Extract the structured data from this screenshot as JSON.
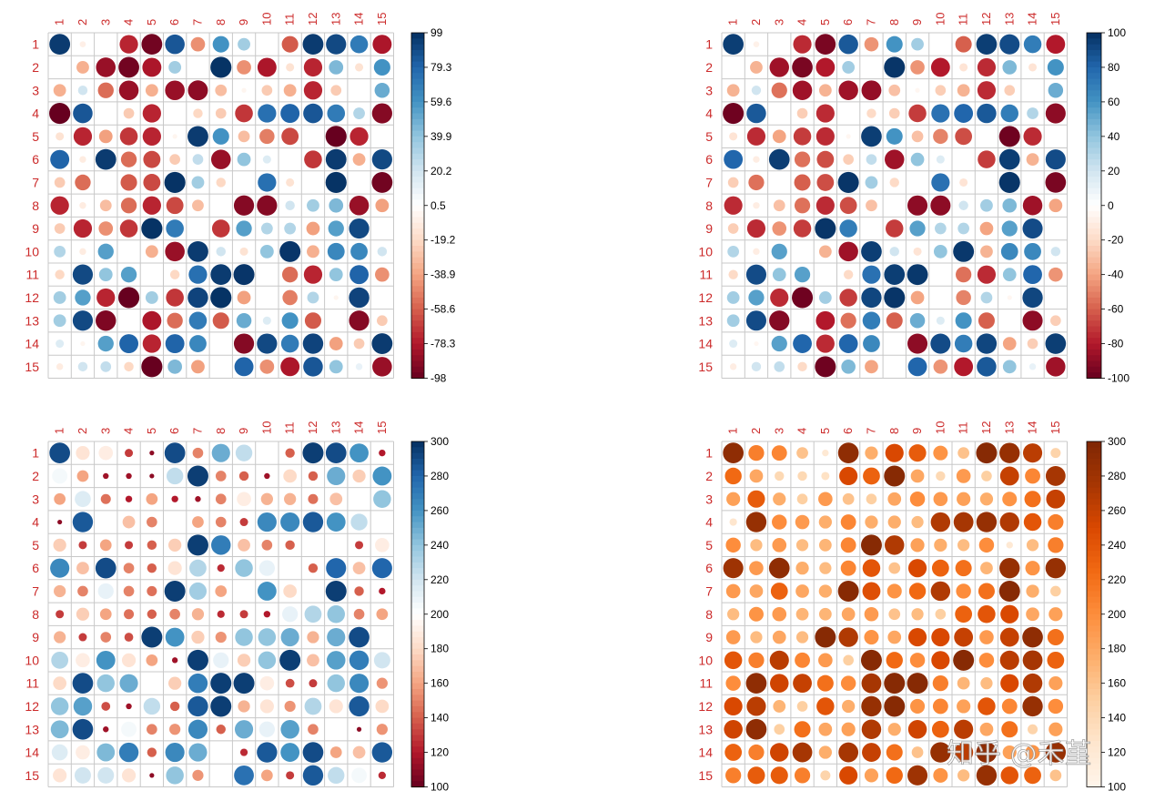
{
  "colors": {
    "tick_label": "#cc2a2a",
    "grid": "#c8c8c8",
    "colorbar_border": "#000000",
    "rdbu": [
      "#67001F",
      "#B2182B",
      "#D6604D",
      "#F4A582",
      "#FDDBC7",
      "#FFFFFF",
      "#D1E5F0",
      "#92C5DE",
      "#4393C3",
      "#2166AC",
      "#053061"
    ],
    "oranges": [
      "#FFF5EB",
      "#FEE6CE",
      "#FDD0A2",
      "#FDAE6B",
      "#FD8D3C",
      "#F16913",
      "#D94801",
      "#A63603",
      "#7F2704"
    ]
  },
  "watermark": "知乎 @禾堇",
  "chart_data": [
    {
      "type": "heatmap",
      "panel": "top-left",
      "palette": "rdbu",
      "title": "",
      "xlabel": "",
      "ylabel": "",
      "labels": [
        "1",
        "2",
        "3",
        "4",
        "5",
        "6",
        "7",
        "8",
        "9",
        "10",
        "11",
        "12",
        "13",
        "14",
        "15"
      ],
      "zlim": [
        -98,
        99
      ],
      "colorbar_ticks": [
        "99",
        "79.3",
        "59.6",
        "39.9",
        "20.2",
        "0.5",
        "-19.2",
        "-38.9",
        "-58.6",
        "-78.3",
        "-98"
      ],
      "legend_position": "right",
      "values": [
        [
          95,
          -8,
          0,
          -75,
          -95,
          85,
          -45,
          60,
          35,
          0,
          -60,
          95,
          90,
          70,
          -80
        ],
        [
          0,
          -35,
          -85,
          -95,
          -80,
          35,
          0,
          98,
          -45,
          -80,
          -15,
          -75,
          45,
          -15,
          60
        ],
        [
          -35,
          20,
          -55,
          -85,
          -35,
          -85,
          -88,
          -30,
          -5,
          -25,
          -35,
          -75,
          -25,
          0,
          50
        ],
        [
          -98,
          85,
          0,
          -25,
          -75,
          0,
          -20,
          -25,
          -70,
          75,
          80,
          85,
          70,
          30,
          -90
        ],
        [
          -15,
          -75,
          -40,
          -70,
          -75,
          -5,
          95,
          60,
          -30,
          -50,
          -65,
          0,
          -98,
          -75,
          0
        ],
        [
          80,
          -10,
          95,
          -55,
          -65,
          -25,
          25,
          -85,
          40,
          15,
          0,
          -70,
          95,
          -35,
          90
        ],
        [
          -25,
          -55,
          0,
          -60,
          -65,
          98,
          35,
          -20,
          0,
          75,
          -15,
          0,
          98,
          0,
          -95
        ],
        [
          -75,
          -10,
          -30,
          -55,
          -75,
          -65,
          -30,
          0,
          -90,
          -90,
          20,
          35,
          45,
          -85,
          -40
        ],
        [
          -25,
          -75,
          -45,
          -70,
          98,
          70,
          0,
          -70,
          55,
          30,
          30,
          -40,
          55,
          90,
          0
        ],
        [
          30,
          -10,
          55,
          0,
          -35,
          -85,
          95,
          20,
          -15,
          40,
          97,
          -35,
          65,
          65,
          20
        ],
        [
          -20,
          90,
          40,
          55,
          0,
          -20,
          75,
          95,
          97,
          0,
          -55,
          -75,
          40,
          80,
          -45
        ],
        [
          35,
          55,
          -75,
          -98,
          35,
          -70,
          92,
          98,
          -40,
          0,
          -50,
          30,
          -5,
          92,
          0
        ],
        [
          35,
          90,
          -92,
          0,
          -80,
          -55,
          70,
          -60,
          50,
          15,
          60,
          -60,
          0,
          -90,
          -25
        ],
        [
          15,
          -5,
          55,
          80,
          -75,
          80,
          65,
          0,
          -90,
          90,
          70,
          92,
          -40,
          -25,
          95
        ],
        [
          -10,
          20,
          25,
          -20,
          -98,
          45,
          -40,
          0,
          80,
          -45,
          -80,
          85,
          40,
          10,
          -85
        ]
      ]
    },
    {
      "type": "heatmap",
      "panel": "top-right",
      "palette": "rdbu",
      "title": "",
      "xlabel": "",
      "ylabel": "",
      "labels": [
        "1",
        "2",
        "3",
        "4",
        "5",
        "6",
        "7",
        "8",
        "9",
        "10",
        "11",
        "12",
        "13",
        "14",
        "15"
      ],
      "zlim": [
        -100,
        100
      ],
      "colorbar_ticks": [
        "100",
        "80",
        "60",
        "40",
        "20",
        "0",
        "-20",
        "-40",
        "-60",
        "-80",
        "-100"
      ],
      "legend_position": "right",
      "values": [
        [
          95,
          -8,
          0,
          -75,
          -95,
          85,
          -45,
          60,
          35,
          0,
          -60,
          95,
          90,
          70,
          -80
        ],
        [
          0,
          -35,
          -85,
          -95,
          -80,
          35,
          0,
          98,
          -45,
          -80,
          -15,
          -75,
          45,
          -15,
          60
        ],
        [
          -35,
          20,
          -55,
          -85,
          -35,
          -85,
          -88,
          -30,
          -5,
          -25,
          -35,
          -75,
          -25,
          0,
          50
        ],
        [
          -98,
          85,
          0,
          -25,
          -75,
          0,
          -20,
          -25,
          -70,
          75,
          80,
          85,
          70,
          30,
          -90
        ],
        [
          -15,
          -75,
          -40,
          -70,
          -75,
          -5,
          95,
          60,
          -30,
          -50,
          -65,
          0,
          -98,
          -75,
          0
        ],
        [
          80,
          -10,
          95,
          -55,
          -65,
          -25,
          25,
          -85,
          40,
          15,
          0,
          -70,
          95,
          -35,
          90
        ],
        [
          -25,
          -55,
          0,
          -60,
          -65,
          98,
          35,
          -20,
          0,
          75,
          -15,
          0,
          98,
          0,
          -95
        ],
        [
          -75,
          -10,
          -30,
          -55,
          -75,
          -65,
          -30,
          0,
          -90,
          -90,
          20,
          35,
          45,
          -85,
          -40
        ],
        [
          -25,
          -75,
          -45,
          -70,
          98,
          70,
          0,
          -70,
          55,
          30,
          30,
          -40,
          55,
          90,
          0
        ],
        [
          30,
          -10,
          55,
          0,
          -35,
          -85,
          95,
          20,
          -15,
          40,
          97,
          -35,
          65,
          65,
          20
        ],
        [
          -20,
          90,
          40,
          55,
          0,
          -20,
          75,
          95,
          97,
          0,
          -55,
          -75,
          40,
          80,
          -45
        ],
        [
          35,
          55,
          -75,
          -98,
          35,
          -70,
          92,
          98,
          -40,
          0,
          -50,
          30,
          -5,
          92,
          0
        ],
        [
          35,
          90,
          -92,
          0,
          -80,
          -55,
          70,
          -60,
          50,
          15,
          60,
          -60,
          0,
          -90,
          -25
        ],
        [
          15,
          -5,
          55,
          80,
          -75,
          80,
          65,
          0,
          -90,
          90,
          70,
          92,
          -40,
          -25,
          95
        ],
        [
          -10,
          20,
          25,
          -20,
          -98,
          45,
          -40,
          0,
          80,
          -45,
          -80,
          85,
          40,
          10,
          -85
        ]
      ]
    },
    {
      "type": "heatmap",
      "panel": "bottom-left",
      "palette": "rdbu",
      "title": "",
      "xlabel": "",
      "ylabel": "",
      "labels": [
        "1",
        "2",
        "3",
        "4",
        "5",
        "6",
        "7",
        "8",
        "9",
        "10",
        "11",
        "12",
        "13",
        "14",
        "15"
      ],
      "zlim": [
        100,
        300
      ],
      "colorbar_ticks": [
        "300",
        "280",
        "260",
        "240",
        "220",
        "200",
        "180",
        "160",
        "140",
        "120",
        "100"
      ],
      "legend_position": "right",
      "values": [
        [
          290,
          185,
          190,
          130,
          110,
          290,
          150,
          250,
          225,
          200,
          140,
          295,
          290,
          260,
          120
        ],
        [
          205,
          160,
          115,
          115,
          110,
          225,
          295,
          150,
          140,
          115,
          180,
          140,
          250,
          175,
          260
        ],
        [
          160,
          215,
          145,
          120,
          160,
          120,
          115,
          150,
          190,
          165,
          165,
          145,
          170,
          200,
          240
        ],
        [
          110,
          285,
          200,
          170,
          150,
          200,
          160,
          150,
          130,
          265,
          265,
          285,
          260,
          225,
          200
        ],
        [
          175,
          130,
          160,
          130,
          140,
          175,
          295,
          270,
          170,
          150,
          140,
          200,
          100,
          130,
          190
        ],
        [
          265,
          170,
          290,
          150,
          140,
          185,
          230,
          125,
          240,
          210,
          200,
          140,
          280,
          170,
          280
        ],
        [
          165,
          150,
          210,
          150,
          145,
          295,
          235,
          160,
          200,
          260,
          180,
          200,
          295,
          140,
          120
        ],
        [
          130,
          175,
          160,
          145,
          140,
          150,
          165,
          125,
          130,
          120,
          210,
          230,
          240,
          150,
          160
        ],
        [
          165,
          130,
          150,
          135,
          295,
          260,
          175,
          155,
          240,
          240,
          250,
          165,
          250,
          290,
          200
        ],
        [
          230,
          190,
          260,
          185,
          160,
          115,
          295,
          210,
          175,
          240,
          295,
          170,
          255,
          270,
          220
        ],
        [
          180,
          290,
          240,
          250,
          200,
          175,
          270,
          295,
          295,
          190,
          135,
          130,
          240,
          265,
          155
        ],
        [
          240,
          255,
          135,
          115,
          225,
          140,
          285,
          295,
          165,
          185,
          155,
          230,
          185,
          285,
          180
        ],
        [
          245,
          290,
          115,
          205,
          150,
          155,
          265,
          140,
          250,
          210,
          255,
          150,
          200,
          110,
          155
        ],
        [
          215,
          190,
          245,
          270,
          140,
          265,
          250,
          200,
          125,
          285,
          260,
          290,
          160,
          170,
          285
        ],
        [
          185,
          220,
          220,
          185,
          110,
          240,
          155,
          200,
          275,
          160,
          130,
          285,
          225,
          205,
          125
        ]
      ]
    },
    {
      "type": "heatmap",
      "panel": "bottom-right",
      "palette": "oranges",
      "title": "",
      "xlabel": "",
      "ylabel": "",
      "labels": [
        "1",
        "2",
        "3",
        "4",
        "5",
        "6",
        "7",
        "8",
        "9",
        "10",
        "11",
        "12",
        "13",
        "14",
        "15"
      ],
      "zlim": [
        100,
        300
      ],
      "colorbar_ticks": [
        "300",
        "280",
        "260",
        "240",
        "220",
        "200",
        "180",
        "160",
        "140",
        "120",
        "100"
      ],
      "legend_position": "right",
      "values": [
        [
          290,
          210,
          205,
          160,
          120,
          290,
          175,
          250,
          235,
          195,
          160,
          295,
          285,
          265,
          145
        ],
        [
          225,
          180,
          140,
          140,
          130,
          250,
          230,
          295,
          180,
          140,
          190,
          150,
          260,
          205,
          275
        ],
        [
          185,
          235,
          175,
          150,
          190,
          160,
          150,
          180,
          200,
          190,
          185,
          175,
          195,
          220,
          260
        ],
        [
          125,
          285,
          200,
          190,
          175,
          205,
          175,
          175,
          165,
          270,
          275,
          285,
          270,
          240,
          210
        ],
        [
          200,
          165,
          190,
          165,
          170,
          205,
          295,
          270,
          185,
          175,
          165,
          200,
          120,
          165,
          210
        ],
        [
          280,
          190,
          290,
          175,
          165,
          205,
          240,
          160,
          250,
          230,
          220,
          170,
          285,
          195,
          285
        ],
        [
          190,
          180,
          230,
          180,
          175,
          295,
          245,
          195,
          225,
          270,
          200,
          220,
          295,
          175,
          150
        ],
        [
          165,
          195,
          190,
          170,
          170,
          180,
          190,
          160,
          165,
          150,
          230,
          240,
          250,
          180,
          185
        ],
        [
          190,
          165,
          180,
          165,
          295,
          270,
          195,
          180,
          250,
          250,
          260,
          190,
          260,
          290,
          220
        ],
        [
          240,
          210,
          265,
          205,
          190,
          150,
          295,
          225,
          200,
          250,
          295,
          200,
          265,
          275,
          230
        ],
        [
          200,
          290,
          255,
          260,
          220,
          200,
          275,
          295,
          295,
          210,
          170,
          165,
          250,
          270,
          185
        ],
        [
          250,
          265,
          170,
          150,
          240,
          175,
          285,
          295,
          195,
          205,
          185,
          240,
          205,
          285,
          200
        ],
        [
          255,
          290,
          150,
          220,
          180,
          185,
          270,
          175,
          255,
          230,
          265,
          180,
          220,
          145,
          185
        ],
        [
          230,
          210,
          255,
          275,
          175,
          275,
          260,
          220,
          160,
          285,
          265,
          290,
          185,
          195,
          285
        ],
        [
          210,
          235,
          235,
          210,
          145,
          250,
          185,
          225,
          280,
          195,
          165,
          285,
          240,
          230,
          160
        ]
      ]
    }
  ]
}
